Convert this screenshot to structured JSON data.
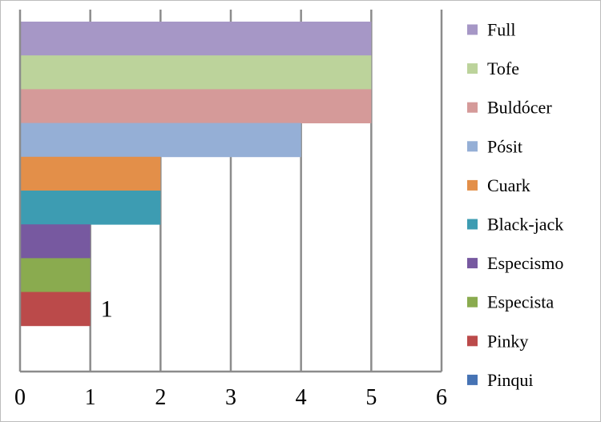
{
  "chart_data": {
    "type": "bar",
    "orientation": "horizontal",
    "categories": [
      "Full",
      "Tofe",
      "Buldócer",
      "Pósit",
      "Cuark",
      "Black-jack",
      "Especismo",
      "Especista",
      "Pinky",
      "Pinqui"
    ],
    "values": [
      5,
      5,
      5,
      4,
      2,
      2,
      1,
      1,
      1,
      0
    ],
    "colors": [
      "#a697c6",
      "#bcd39b",
      "#d59a99",
      "#95afd6",
      "#e38f49",
      "#3d9cb2",
      "#7759a0",
      "#8aab4f",
      "#bb4a4a",
      "#4673b4"
    ],
    "xlim": [
      0,
      6
    ],
    "x_ticks": [
      "0",
      "1",
      "2",
      "3",
      "4",
      "5",
      "6"
    ],
    "data_labels": [
      {
        "category": "Pinky",
        "text": "1"
      }
    ],
    "grid": "vertical",
    "legend": {
      "position": "right",
      "entries": [
        "Full",
        "Tofe",
        "Buldócer",
        "Pósit",
        "Cuark",
        "Black-jack",
        "Especismo",
        "Especista",
        "Pinky",
        "Pinqui"
      ]
    },
    "title": "",
    "xlabel": "",
    "ylabel": ""
  }
}
